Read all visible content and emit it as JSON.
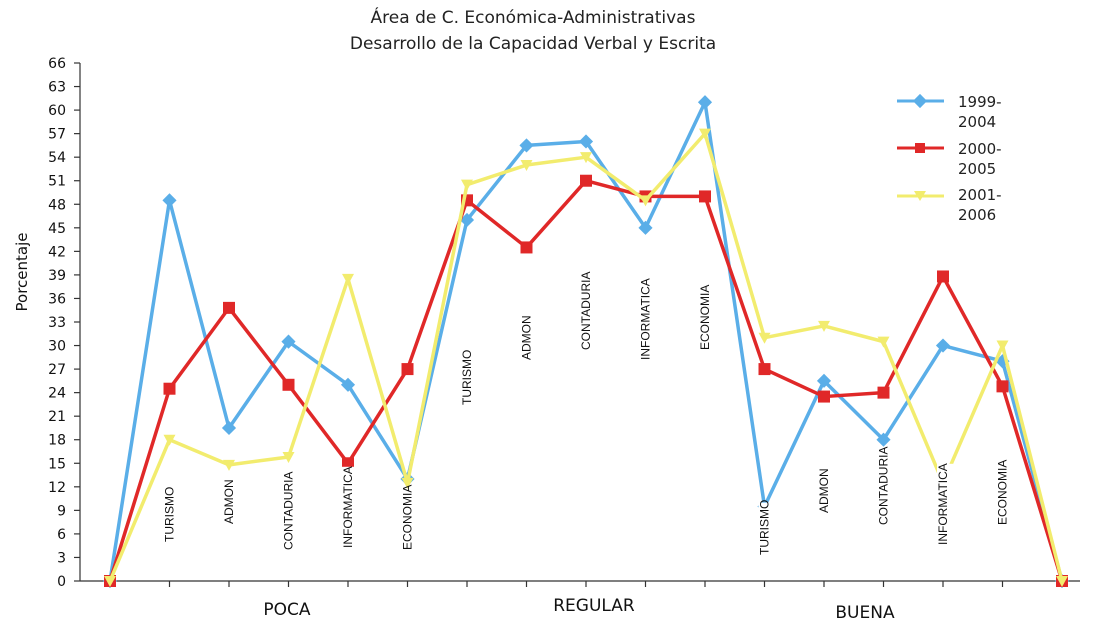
{
  "chart_data": {
    "type": "line",
    "title": "Área de C. Económica-Administrativas",
    "subtitle": "Desarrollo de la Capacidad Verbal y Escrita",
    "ylabel": "Porcentaje",
    "xlabel": "",
    "ylim": [
      0,
      66
    ],
    "yticks": [
      "0",
      "3",
      "6",
      "9",
      "12",
      "15",
      "18",
      "21",
      "24",
      "27",
      "30",
      "33",
      "36",
      "39",
      "42",
      "45",
      "48",
      "51",
      "54",
      "57",
      "60",
      "63",
      "66"
    ],
    "groups": [
      "POCA",
      "REGULAR",
      "BUENA"
    ],
    "categories": [
      "",
      "TURISMO",
      "ADMON",
      "CONTADURIA",
      "INFORMATICA",
      "ECONOMIA",
      "TURISMO",
      "ADMON",
      "CONTADURIA",
      "INFORMATICA",
      "ECONOMIA",
      "TURISMO",
      "ADMON",
      "CONTADURIA",
      "INFORMATICA",
      "ECONOMIA",
      ""
    ],
    "series": [
      {
        "name": "1999-2004",
        "color": "#5aaee8",
        "values": [
          0,
          48.5,
          19.5,
          30.5,
          25,
          13,
          46,
          55.5,
          56,
          45,
          61,
          9.5,
          25.5,
          18,
          30,
          28,
          0
        ]
      },
      {
        "name": "2000-2005",
        "color": "#e02828",
        "values": [
          0,
          24.5,
          34.8,
          25,
          15,
          27,
          48.5,
          42.5,
          51,
          49,
          49,
          27,
          23.5,
          24,
          38.8,
          24.8,
          0
        ]
      },
      {
        "name": "2001-2006",
        "color": "#f2ec6e",
        "values": [
          0,
          18,
          14.8,
          15.8,
          38.5,
          12.5,
          50.5,
          53,
          54,
          48.5,
          57,
          31,
          32.5,
          30.5,
          12.5,
          30,
          0
        ]
      }
    ],
    "legend": [
      {
        "line1": "1999-",
        "line2": "2004"
      },
      {
        "line1": "2000-",
        "line2": "2005"
      },
      {
        "line1": "2001-",
        "line2": "2006"
      }
    ],
    "legend_position": "top-right",
    "grid": false
  }
}
